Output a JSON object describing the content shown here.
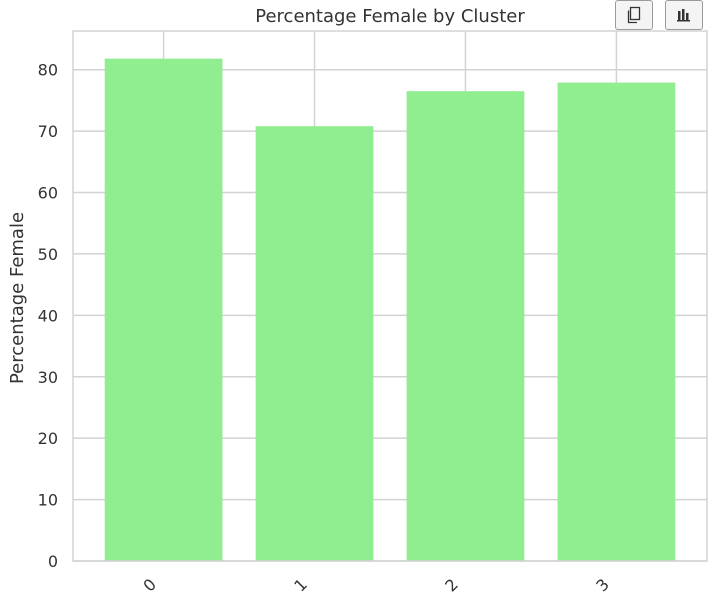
{
  "toolbar": {
    "copy_icon": "copy-icon",
    "chart_icon": "bar-chart-icon"
  },
  "chart_data": {
    "type": "bar",
    "title": "Percentage Female by Cluster",
    "xlabel": "",
    "ylabel": "Percentage Female",
    "categories": [
      "0",
      "1",
      "2",
      "3"
    ],
    "values": [
      81.8,
      70.8,
      76.5,
      77.9
    ],
    "ylim": [
      0,
      86.3
    ],
    "yticks": [
      0,
      10,
      20,
      30,
      40,
      50,
      60,
      70,
      80
    ],
    "grid": true,
    "bar_color": "#90ee90",
    "grid_color": "#d3d3d3",
    "text_color": "#333333"
  }
}
